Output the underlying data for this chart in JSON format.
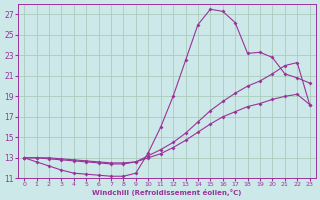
{
  "xlabel": "Windchill (Refroidissement éolien,°C)",
  "bg_color": "#cde8e8",
  "grid_color": "#aaccbb",
  "line_color": "#993399",
  "xlim": [
    -0.5,
    23.5
  ],
  "ylim": [
    11,
    28
  ],
  "yticks": [
    11,
    13,
    15,
    17,
    19,
    21,
    23,
    25,
    27
  ],
  "xticks": [
    0,
    1,
    2,
    3,
    4,
    5,
    6,
    7,
    8,
    9,
    10,
    11,
    12,
    13,
    14,
    15,
    16,
    17,
    18,
    19,
    20,
    21,
    22,
    23
  ],
  "line1_x": [
    0,
    1,
    2,
    3,
    4,
    5,
    6,
    7,
    8,
    9,
    10,
    11,
    12,
    13,
    14,
    15,
    16,
    17,
    18,
    19,
    20,
    21,
    22,
    23
  ],
  "line1_y": [
    13.0,
    12.6,
    12.2,
    11.8,
    11.5,
    11.4,
    11.3,
    11.2,
    11.2,
    11.5,
    13.5,
    16.0,
    19.0,
    22.5,
    26.0,
    27.5,
    27.3,
    26.2,
    23.2,
    23.3,
    22.8,
    21.2,
    20.8,
    20.3
  ],
  "line2_x": [
    0,
    1,
    2,
    3,
    4,
    5,
    6,
    7,
    8,
    9,
    10,
    11,
    12,
    13,
    14,
    15,
    16,
    17,
    18,
    19,
    20,
    21,
    22,
    23
  ],
  "line2_y": [
    13.0,
    13.0,
    12.9,
    12.8,
    12.7,
    12.6,
    12.5,
    12.4,
    12.4,
    12.6,
    13.2,
    13.8,
    14.5,
    15.4,
    16.5,
    17.6,
    18.5,
    19.3,
    20.0,
    20.5,
    21.2,
    22.0,
    22.3,
    18.2
  ],
  "line3_x": [
    0,
    1,
    2,
    3,
    4,
    5,
    6,
    7,
    8,
    9,
    10,
    11,
    12,
    13,
    14,
    15,
    16,
    17,
    18,
    19,
    20,
    21,
    22,
    23
  ],
  "line3_y": [
    13.0,
    13.0,
    13.0,
    12.9,
    12.8,
    12.7,
    12.6,
    12.5,
    12.5,
    12.6,
    13.0,
    13.4,
    14.0,
    14.7,
    15.5,
    16.3,
    17.0,
    17.5,
    18.0,
    18.3,
    18.7,
    19.0,
    19.2,
    18.2
  ]
}
